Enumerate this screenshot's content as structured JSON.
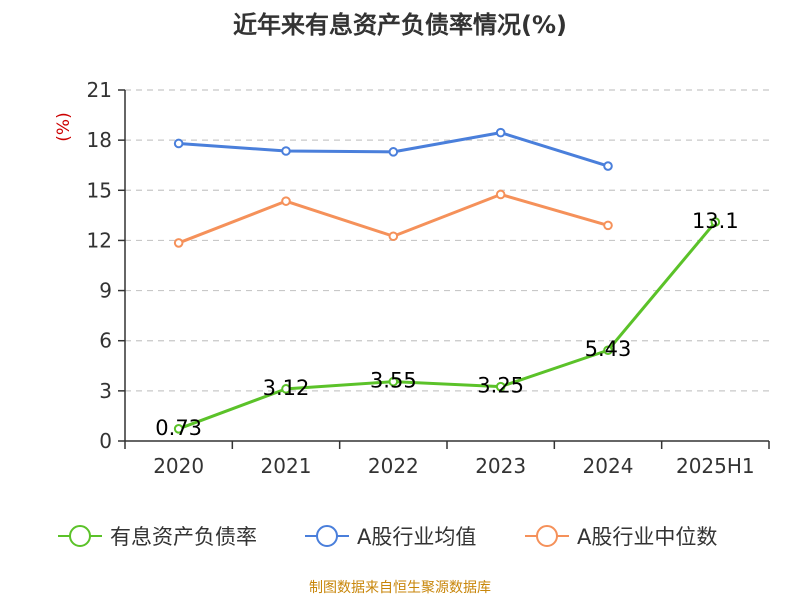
{
  "chart_data": {
    "type": "line",
    "title": "近年来有息资产负债率情况(%)",
    "ylabel": "(%)",
    "xlabel": "",
    "categories": [
      "2020",
      "2021",
      "2022",
      "2023",
      "2024",
      "2025H1"
    ],
    "ylim": [
      0,
      21
    ],
    "yticks": [
      0,
      3,
      6,
      9,
      12,
      15,
      18,
      21
    ],
    "grid": true,
    "legend_position": "bottom",
    "series": [
      {
        "name": "有息资产负债率",
        "color": "#5bc229",
        "values": [
          0.73,
          3.12,
          3.55,
          3.25,
          5.43,
          13.1
        ],
        "labels": [
          "0.73",
          "3.12",
          "3.55",
          "3.25",
          "5.43",
          "13.1"
        ]
      },
      {
        "name": "A股行业均值",
        "color": "#4a7fdb",
        "values": [
          17.8,
          17.35,
          17.3,
          18.45,
          16.45,
          null
        ]
      },
      {
        "name": "A股行业中位数",
        "color": "#f5915a",
        "values": [
          11.85,
          14.35,
          12.25,
          14.75,
          12.9,
          null
        ]
      }
    ]
  },
  "source": "制图数据来自恒生聚源数据库"
}
